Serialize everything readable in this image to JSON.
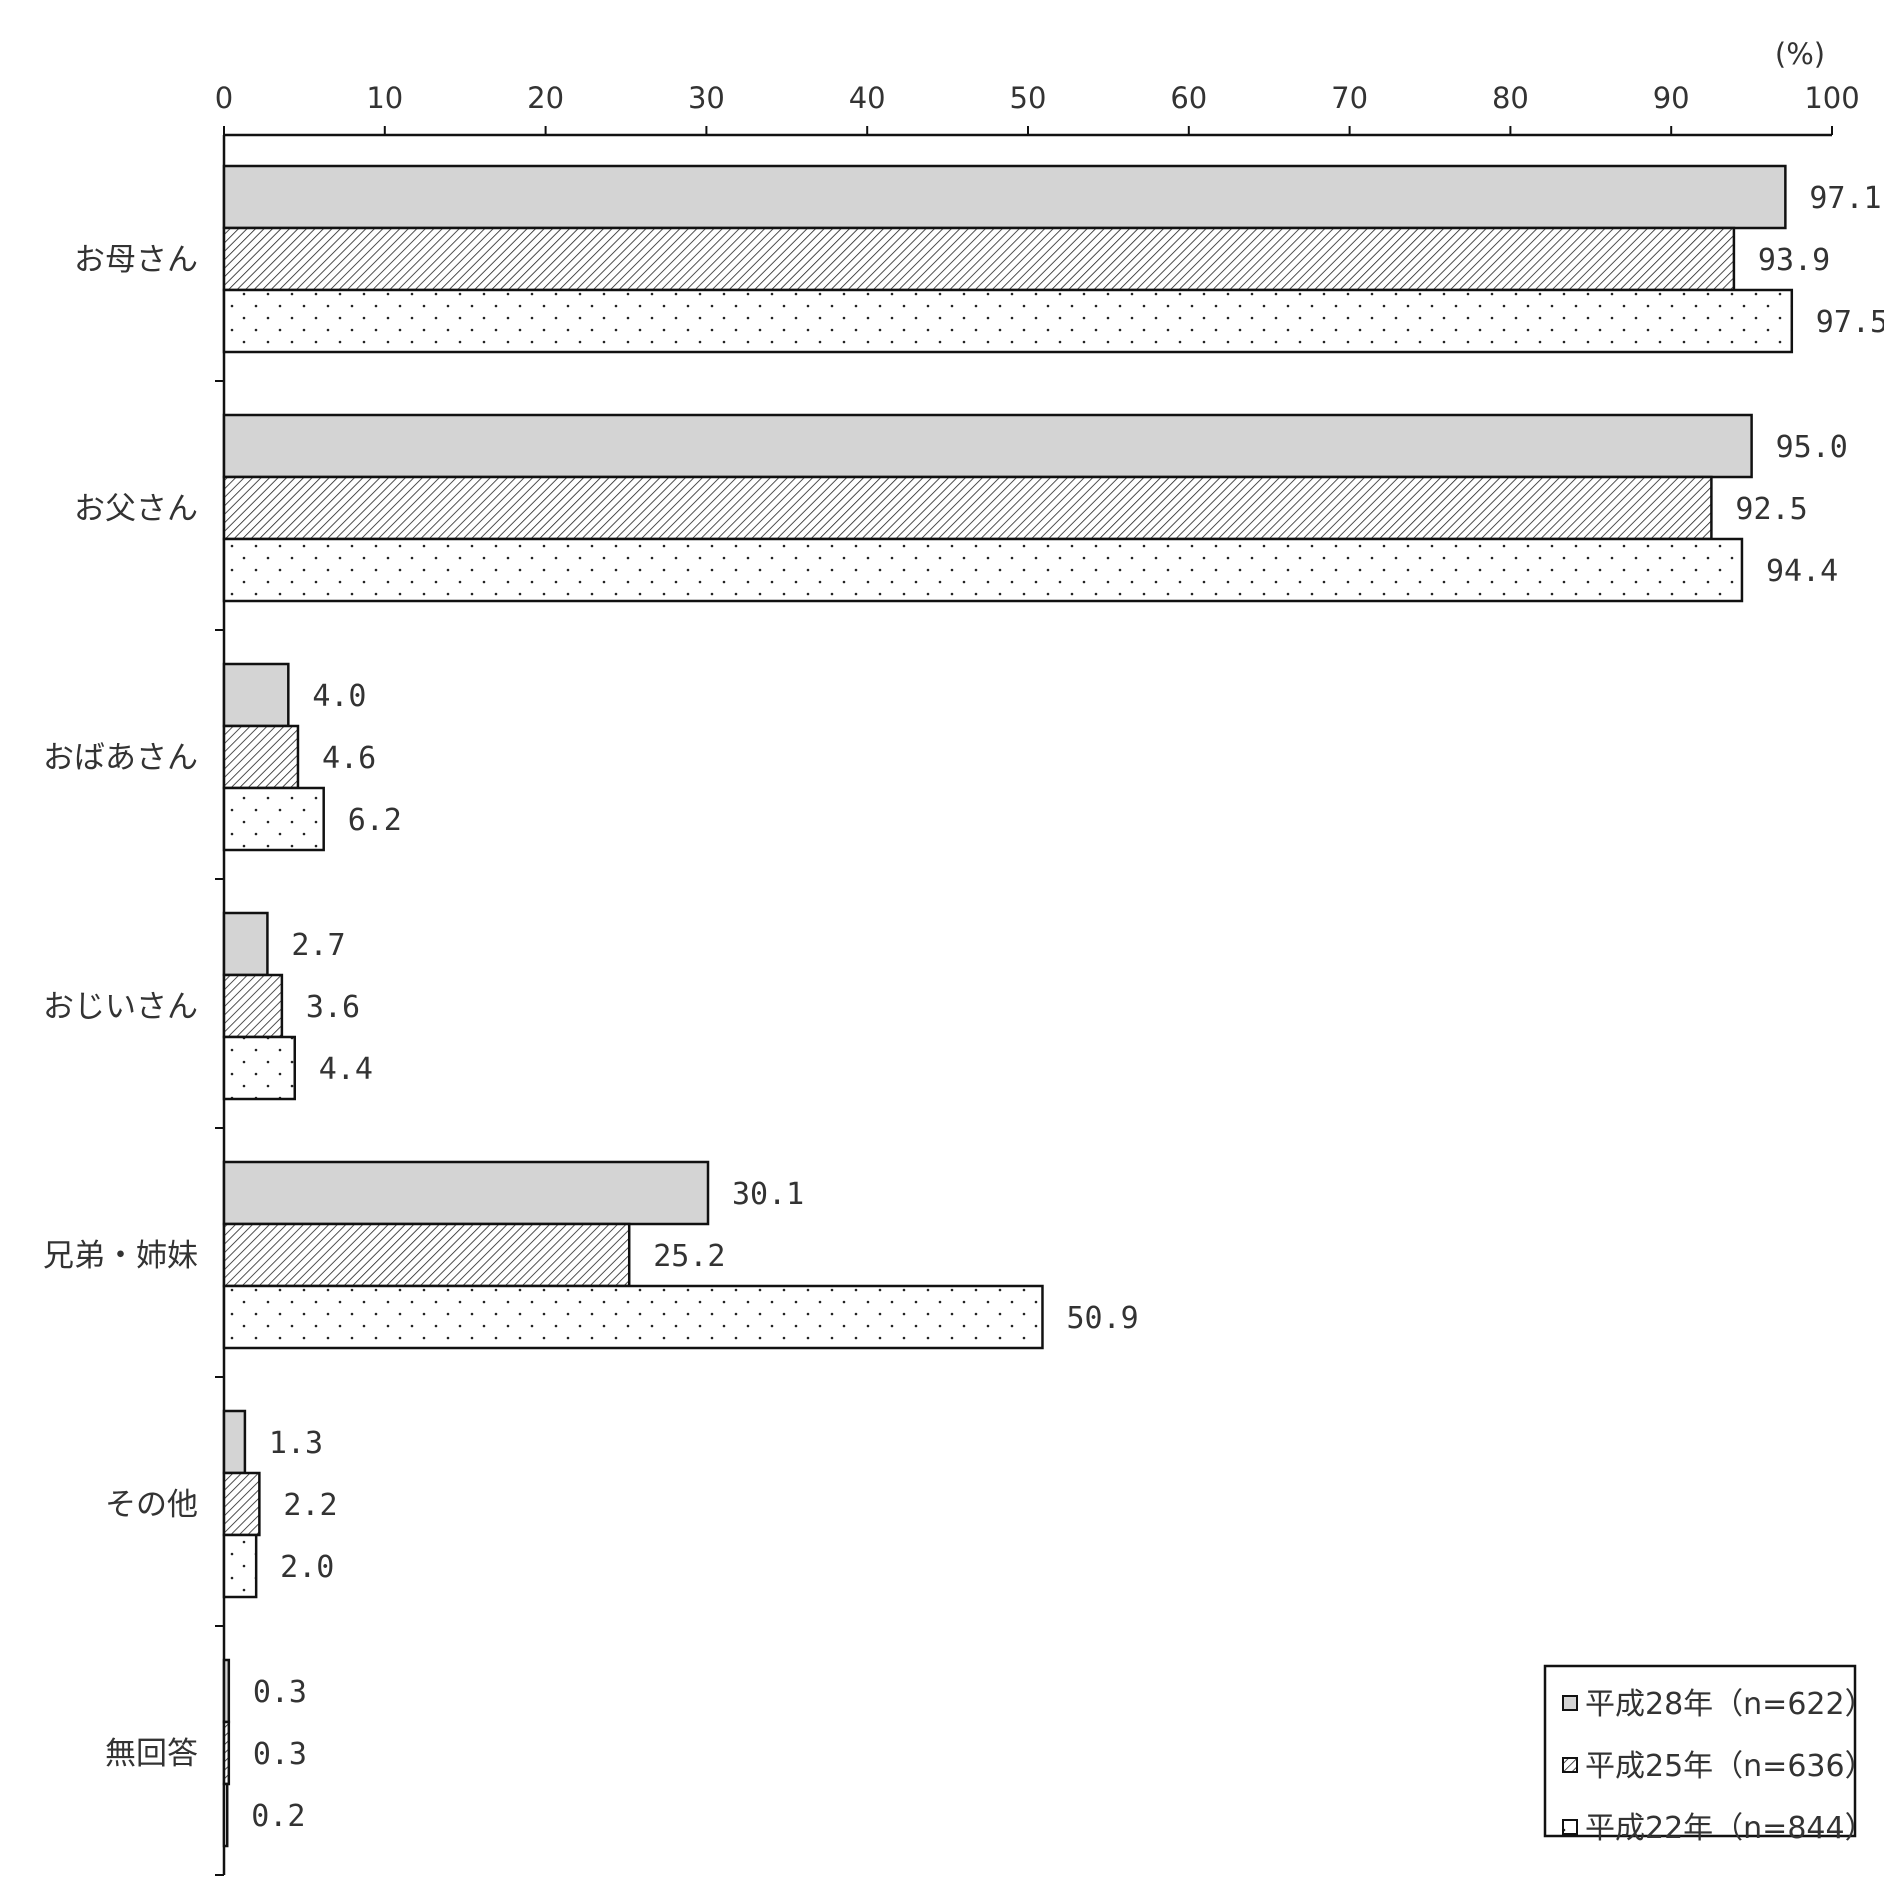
{
  "chart_data": {
    "type": "bar",
    "orientation": "horizontal",
    "unit_label": "(%)",
    "xlim": [
      0,
      100
    ],
    "x_ticks": [
      "0",
      "10",
      "20",
      "30",
      "40",
      "50",
      "60",
      "70",
      "80",
      "90",
      "100"
    ],
    "categories": [
      "お母さん",
      "お父さん",
      "おばあさん",
      "おじいさん",
      "兄弟・姉妹",
      "その他",
      "無回答"
    ],
    "series": [
      {
        "name": "平成28年（n=622）",
        "pattern": "solid-gray",
        "color": "#d4d4d4",
        "values": [
          97.1,
          95.0,
          4.0,
          2.7,
          30.1,
          1.3,
          0.3
        ],
        "labels": [
          "97.1",
          "95.0",
          "4.0",
          "2.7",
          "30.1",
          "1.3",
          "0.3"
        ]
      },
      {
        "name": "平成25年（n=636）",
        "pattern": "diagonal-hatch",
        "color": "#ffffff",
        "values": [
          93.9,
          92.5,
          4.6,
          3.6,
          25.2,
          2.2,
          0.3
        ],
        "labels": [
          "93.9",
          "92.5",
          "4.6",
          "3.6",
          "25.2",
          "2.2",
          "0.3"
        ]
      },
      {
        "name": "平成22年（n=844）",
        "pattern": "dots",
        "color": "#ffffff",
        "values": [
          97.5,
          94.4,
          6.2,
          4.4,
          50.9,
          2.0,
          0.2
        ],
        "labels": [
          "97.5",
          "94.4",
          "6.2",
          "4.4",
          "50.9",
          "2.0",
          "0.2"
        ]
      }
    ],
    "grid": false,
    "legend_position": "bottom-right"
  }
}
